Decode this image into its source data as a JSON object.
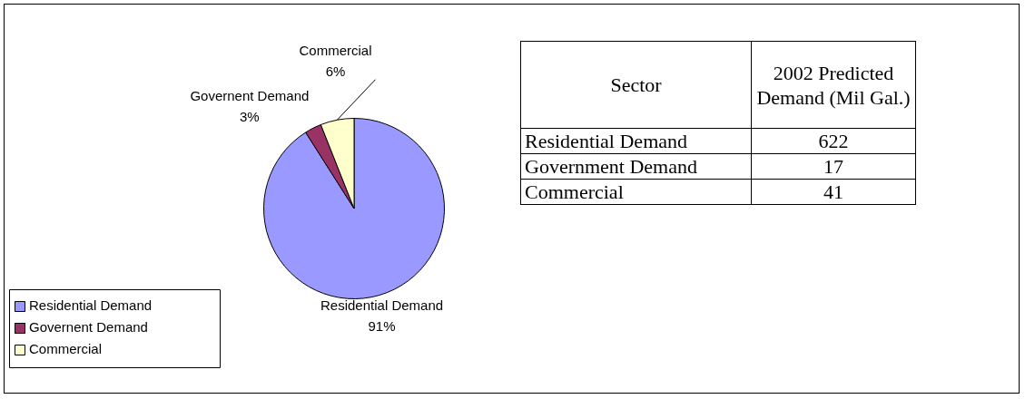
{
  "chart_data": {
    "type": "pie",
    "categories": [
      "Residential Demand",
      "Governent Demand",
      "Commercial"
    ],
    "values": [
      91,
      3,
      6
    ],
    "value_labels": [
      "91%",
      "3%",
      "6%"
    ],
    "colors": [
      "#9999ff",
      "#993366",
      "#ffffcc"
    ],
    "legend": "bottom left",
    "annotations": [
      "Sector",
      "2002 Predicted Demand (Mil Gal.)",
      "Residential Demand",
      "622",
      "Government Demand",
      "17",
      "Commercial",
      "41"
    ]
  }
}
